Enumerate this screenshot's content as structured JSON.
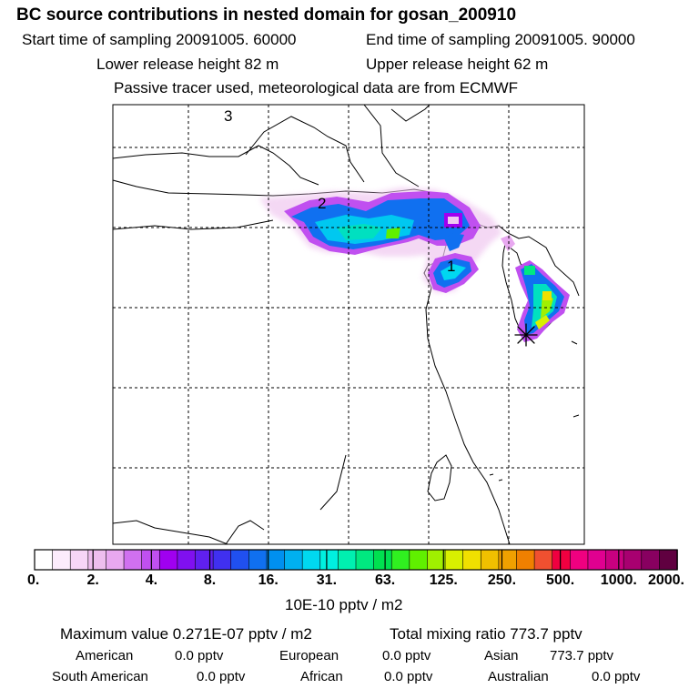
{
  "header": {
    "title": "BC  source contributions in nested domain for gosan_200910",
    "start_time": "Start time of sampling 20091005. 60000",
    "end_time": "End time of sampling 20091005. 90000",
    "lower_height": "Lower release height   82 m",
    "upper_height": "Upper release height   62 m",
    "tracer_note": "Passive tracer used, meteorological data are from ECMWF"
  },
  "map": {
    "labels": [
      "3",
      "2",
      "1"
    ],
    "marker_icon": "star-marker-icon"
  },
  "colorbar": {
    "ticks": [
      "0.",
      "2.",
      "4.",
      "8.",
      "16.",
      "31.",
      "63.",
      "125.",
      "250.",
      "500.",
      "1000.",
      "2000."
    ],
    "unit": "10E-10 pptv / m2",
    "colors": [
      "#ffffff",
      "#fcecfc",
      "#f6d6f6",
      "#eebeee",
      "#e8a8f0",
      "#d070f0",
      "#c050f0",
      "#a000f0",
      "#8010f0",
      "#6020f0",
      "#4030f0",
      "#2050f0",
      "#1070f0",
      "#0090f0",
      "#00b0f0",
      "#00d8f0",
      "#00f0e0",
      "#00f0b0",
      "#00e880",
      "#00e050",
      "#30f020",
      "#60f000",
      "#a0f000",
      "#d8f000",
      "#f0e000",
      "#f0c000",
      "#f0a000",
      "#f08000",
      "#f05030",
      "#f00040",
      "#f00080",
      "#e00090",
      "#c80080",
      "#a80070",
      "#880060",
      "#600040"
    ]
  },
  "stats": {
    "maximum": "Maximum value  0.271E-07 pptv / m2",
    "total": "Total mixing ratio      773.7 pptv",
    "american_label": "American",
    "american_value": "0.0 pptv",
    "european_label": "European",
    "european_value": "0.0 pptv",
    "asian_label": "Asian",
    "asian_value": "773.7 pptv",
    "south_american_label": "South American",
    "south_american_value": "0.0 pptv",
    "african_label": "African",
    "african_value": "0.0 pptv",
    "australian_label": "Australian",
    "australian_value": "0.0 pptv"
  }
}
